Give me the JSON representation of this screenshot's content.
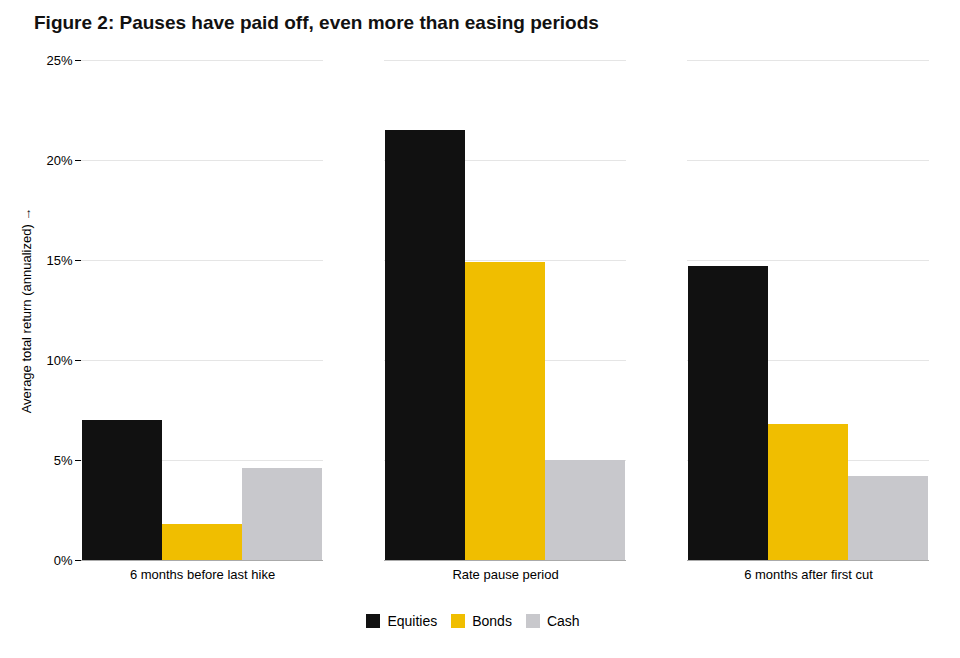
{
  "chart_data": {
    "type": "bar",
    "title": "Figure 2: Pauses have paid off, even more than easing periods",
    "categories": [
      "6 months before last hike",
      "Rate pause period",
      "6 months after first cut"
    ],
    "series": [
      {
        "name": "Equities",
        "color": "#111111",
        "values": [
          7.0,
          21.5,
          14.7
        ]
      },
      {
        "name": "Bonds",
        "color": "#F0BE00",
        "values": [
          1.8,
          14.9,
          6.8
        ]
      },
      {
        "name": "Cash",
        "color": "#C8C8CC",
        "values": [
          4.6,
          5.0,
          4.2
        ]
      }
    ],
    "ylabel": "Average total return (annualized)",
    "ylim": [
      0,
      25
    ],
    "yticks": [
      {
        "value": 0,
        "label": "0%"
      },
      {
        "value": 5,
        "label": "5%"
      },
      {
        "value": 10,
        "label": "10%"
      },
      {
        "value": 15,
        "label": "15%"
      },
      {
        "value": 20,
        "label": "20%"
      },
      {
        "value": 25,
        "label": "25%"
      }
    ],
    "grid": true,
    "legend": "bottom"
  }
}
